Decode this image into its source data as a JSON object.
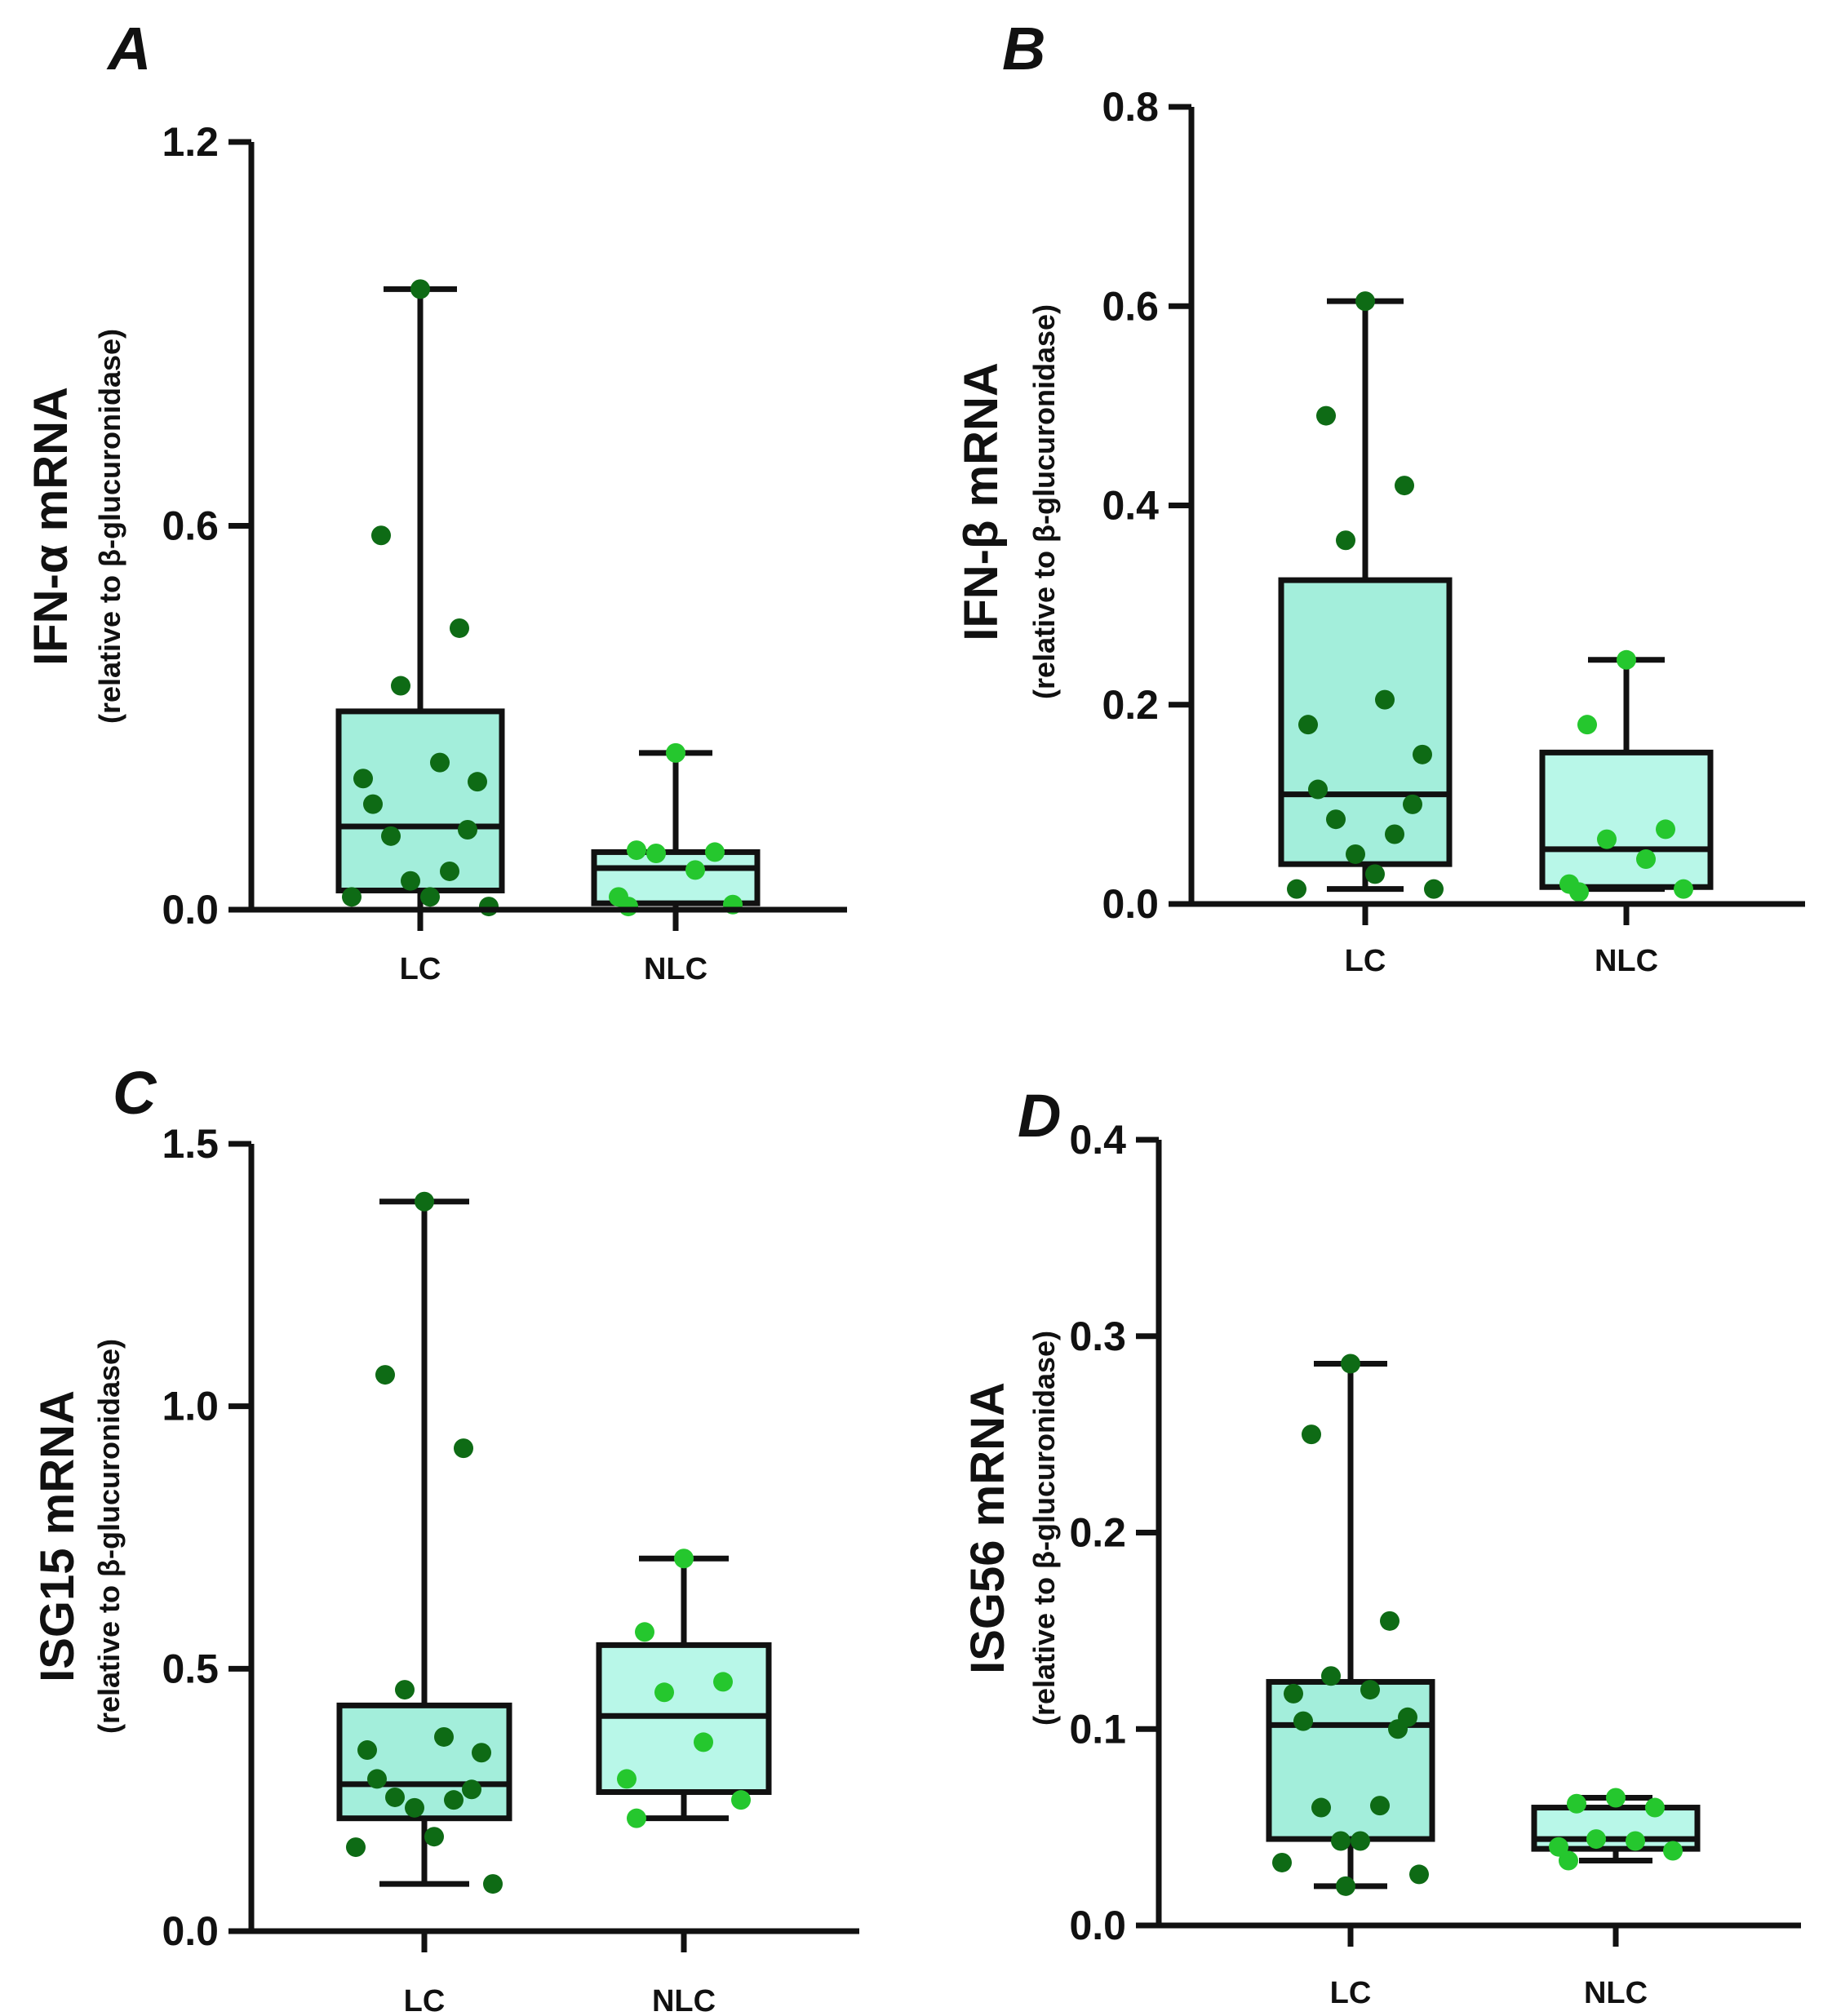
{
  "chart_data": [
    {
      "panel": "A",
      "type": "box",
      "ylabel": "IFN-α mRNA",
      "ylabel_sub": "(relative to β-glucuronidase)",
      "ylim": [
        0,
        1.2
      ],
      "yticks": [
        0.0,
        0.6,
        1.2
      ],
      "ytick_labels": [
        "0.0",
        "0.6",
        "1.2"
      ],
      "groups": [
        {
          "name": "LC",
          "box_color": "#a3eedb",
          "dot_color": "#0e6b15",
          "whisker_low": 0.0,
          "q1": 0.03,
          "median": 0.13,
          "q3": 0.31,
          "whisker_high": 0.97,
          "points": [
            0.97,
            0.585,
            0.44,
            0.35,
            0.23,
            0.205,
            0.2,
            0.165,
            0.125,
            0.115,
            0.06,
            0.045,
            0.02,
            0.02,
            0.005
          ]
        },
        {
          "name": "NLC",
          "box_color": "#b8f7e8",
          "dot_color": "#25c72e",
          "whisker_low": 0.0,
          "q1": 0.01,
          "median": 0.065,
          "q3": 0.09,
          "whisker_high": 0.245,
          "points": [
            0.245,
            0.093,
            0.09,
            0.088,
            0.062,
            0.02,
            0.008,
            0.005
          ]
        }
      ]
    },
    {
      "panel": "B",
      "type": "box",
      "ylabel": "IFN-β mRNA",
      "ylabel_sub": "(relative to β-glucuronidase)",
      "ylim": [
        0,
        0.8
      ],
      "yticks": [
        0.0,
        0.2,
        0.4,
        0.6,
        0.8
      ],
      "ytick_labels": [
        "0.0",
        "0.2",
        "0.4",
        "0.6",
        "0.8"
      ],
      "groups": [
        {
          "name": "LC",
          "box_color": "#a3eedb",
          "dot_color": "#0e6b15",
          "whisker_low": 0.015,
          "q1": 0.04,
          "median": 0.11,
          "q3": 0.325,
          "whisker_high": 0.605,
          "points": [
            0.605,
            0.49,
            0.42,
            0.365,
            0.205,
            0.18,
            0.15,
            0.115,
            0.1,
            0.085,
            0.07,
            0.05,
            0.03,
            0.015,
            0.015
          ]
        },
        {
          "name": "NLC",
          "box_color": "#b8f7e8",
          "dot_color": "#25c72e",
          "whisker_low": 0.015,
          "q1": 0.017,
          "median": 0.055,
          "q3": 0.152,
          "whisker_high": 0.245,
          "points": [
            0.245,
            0.18,
            0.075,
            0.065,
            0.045,
            0.02,
            0.015,
            0.012
          ]
        }
      ]
    },
    {
      "panel": "C",
      "type": "box",
      "ylabel": "ISG15 mRNA",
      "ylabel_sub": "(relative to β-glucuronidase)",
      "ylim": [
        0,
        1.5
      ],
      "yticks": [
        0.0,
        0.5,
        1.0,
        1.5
      ],
      "ytick_labels": [
        "0.0",
        "0.5",
        "1.0",
        "1.5"
      ],
      "groups": [
        {
          "name": "LC",
          "box_color": "#a3eedb",
          "dot_color": "#0e6b15",
          "whisker_low": 0.09,
          "q1": 0.215,
          "median": 0.28,
          "q3": 0.43,
          "whisker_high": 1.39,
          "points": [
            1.39,
            1.06,
            0.92,
            0.46,
            0.37,
            0.345,
            0.34,
            0.29,
            0.27,
            0.255,
            0.25,
            0.235,
            0.18,
            0.16,
            0.09
          ]
        },
        {
          "name": "NLC",
          "box_color": "#b8f7e8",
          "dot_color": "#25c72e",
          "whisker_low": 0.215,
          "q1": 0.265,
          "median": 0.41,
          "q3": 0.545,
          "whisker_high": 0.71,
          "points": [
            0.71,
            0.57,
            0.475,
            0.455,
            0.36,
            0.29,
            0.25,
            0.215
          ]
        }
      ]
    },
    {
      "panel": "D",
      "type": "box",
      "ylabel": "ISG56 mRNA",
      "ylabel_sub": "(relative to β-glucuronidase)",
      "ylim": [
        0,
        0.4
      ],
      "yticks": [
        0.0,
        0.1,
        0.2,
        0.3,
        0.4
      ],
      "ytick_labels": [
        "0.0",
        "0.1",
        "0.2",
        "0.3",
        "0.4"
      ],
      "groups": [
        {
          "name": "LC",
          "box_color": "#a3eedb",
          "dot_color": "#0e6b15",
          "whisker_low": 0.02,
          "q1": 0.044,
          "median": 0.102,
          "q3": 0.124,
          "whisker_high": 0.286,
          "points": [
            0.286,
            0.25,
            0.155,
            0.127,
            0.12,
            0.118,
            0.106,
            0.104,
            0.1,
            0.06,
            0.061,
            0.043,
            0.043,
            0.032,
            0.026,
            0.02
          ]
        },
        {
          "name": "NLC",
          "box_color": "#b8f7e8",
          "dot_color": "#25c72e",
          "whisker_low": 0.033,
          "q1": 0.039,
          "median": 0.044,
          "q3": 0.06,
          "whisker_high": 0.065,
          "points": [
            0.065,
            0.062,
            0.06,
            0.044,
            0.043,
            0.04,
            0.038,
            0.033
          ]
        }
      ]
    }
  ]
}
